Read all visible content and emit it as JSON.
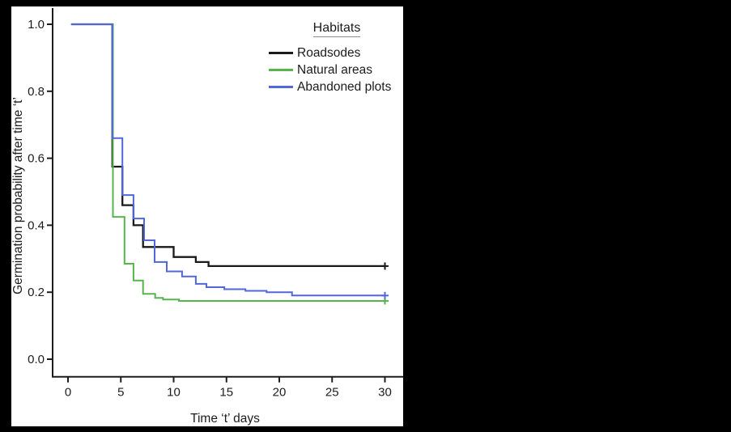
{
  "window": {
    "background_color": "#000000",
    "plot_background_color": "#ffffff",
    "axis_color": "#1c1c1c",
    "text_color": "#1c1c1c"
  },
  "chart_data": {
    "type": "line",
    "variant": "kaplan-meier-step-survival",
    "title": "",
    "xlabel": "Time ‘t’ days",
    "ylabel": "Germination probability after time ‘t’",
    "x_range_days": [
      0,
      30
    ],
    "y_range": [
      0.0,
      1.0
    ],
    "grid": false,
    "x_ticks": [
      {
        "value": 0,
        "label": "0"
      },
      {
        "value": 5,
        "label": "5"
      },
      {
        "value": 10,
        "label": "10"
      },
      {
        "value": 15,
        "label": "15"
      },
      {
        "value": 20,
        "label": "20"
      },
      {
        "value": 25,
        "label": "25"
      },
      {
        "value": 30,
        "label": "30"
      }
    ],
    "y_ticks": [
      {
        "value": 0.0,
        "label": "0.0"
      },
      {
        "value": 0.2,
        "label": "0.2"
      },
      {
        "value": 0.4,
        "label": "0.4"
      },
      {
        "value": 0.6,
        "label": "0.6"
      },
      {
        "value": 0.8,
        "label": "0.8"
      },
      {
        "value": 1.0,
        "label": "1.0"
      }
    ],
    "legend": {
      "title": "Habitats",
      "position": "top-right-inside"
    },
    "censor_marker": "+",
    "series": [
      {
        "name": "Roadsodes",
        "color": "#1a1a1a",
        "censor_points": [
          [
            30,
            0.278
          ]
        ],
        "points": [
          [
            0.3,
            1.0
          ],
          [
            4.2,
            1.0
          ],
          [
            4.2,
            0.575
          ],
          [
            5.15,
            0.575
          ],
          [
            5.15,
            0.46
          ],
          [
            6.2,
            0.46
          ],
          [
            6.2,
            0.4
          ],
          [
            7.1,
            0.4
          ],
          [
            7.1,
            0.335
          ],
          [
            10.0,
            0.335
          ],
          [
            10.0,
            0.305
          ],
          [
            12.1,
            0.305
          ],
          [
            12.1,
            0.29
          ],
          [
            13.3,
            0.29
          ],
          [
            13.3,
            0.278
          ],
          [
            30,
            0.278
          ]
        ]
      },
      {
        "name": "Natural areas",
        "color": "#57b54c",
        "censor_points": [
          [
            30,
            0.174
          ]
        ],
        "points": [
          [
            0.3,
            1.0
          ],
          [
            4.25,
            1.0
          ],
          [
            4.25,
            0.425
          ],
          [
            5.35,
            0.425
          ],
          [
            5.35,
            0.285
          ],
          [
            6.2,
            0.285
          ],
          [
            6.2,
            0.235
          ],
          [
            7.1,
            0.235
          ],
          [
            7.1,
            0.195
          ],
          [
            8.25,
            0.195
          ],
          [
            8.25,
            0.183
          ],
          [
            9.0,
            0.183
          ],
          [
            9.0,
            0.178
          ],
          [
            10.5,
            0.178
          ],
          [
            10.5,
            0.174
          ],
          [
            30,
            0.174
          ]
        ]
      },
      {
        "name": "Abandoned plots",
        "color": "#5167da",
        "censor_points": [
          [
            30,
            0.19
          ]
        ],
        "points": [
          [
            0.3,
            1.0
          ],
          [
            4.2,
            1.0
          ],
          [
            4.2,
            0.66
          ],
          [
            5.15,
            0.66
          ],
          [
            5.15,
            0.49
          ],
          [
            6.2,
            0.49
          ],
          [
            6.2,
            0.42
          ],
          [
            7.2,
            0.42
          ],
          [
            7.2,
            0.355
          ],
          [
            8.2,
            0.355
          ],
          [
            8.2,
            0.29
          ],
          [
            9.35,
            0.29
          ],
          [
            9.35,
            0.262
          ],
          [
            10.8,
            0.262
          ],
          [
            10.8,
            0.247
          ],
          [
            12.1,
            0.247
          ],
          [
            12.1,
            0.225
          ],
          [
            13.1,
            0.225
          ],
          [
            13.1,
            0.215
          ],
          [
            14.8,
            0.215
          ],
          [
            14.8,
            0.209
          ],
          [
            16.8,
            0.209
          ],
          [
            16.8,
            0.204
          ],
          [
            18.8,
            0.204
          ],
          [
            18.8,
            0.2
          ],
          [
            21.2,
            0.2
          ],
          [
            21.2,
            0.19
          ],
          [
            30,
            0.19
          ]
        ]
      }
    ]
  }
}
